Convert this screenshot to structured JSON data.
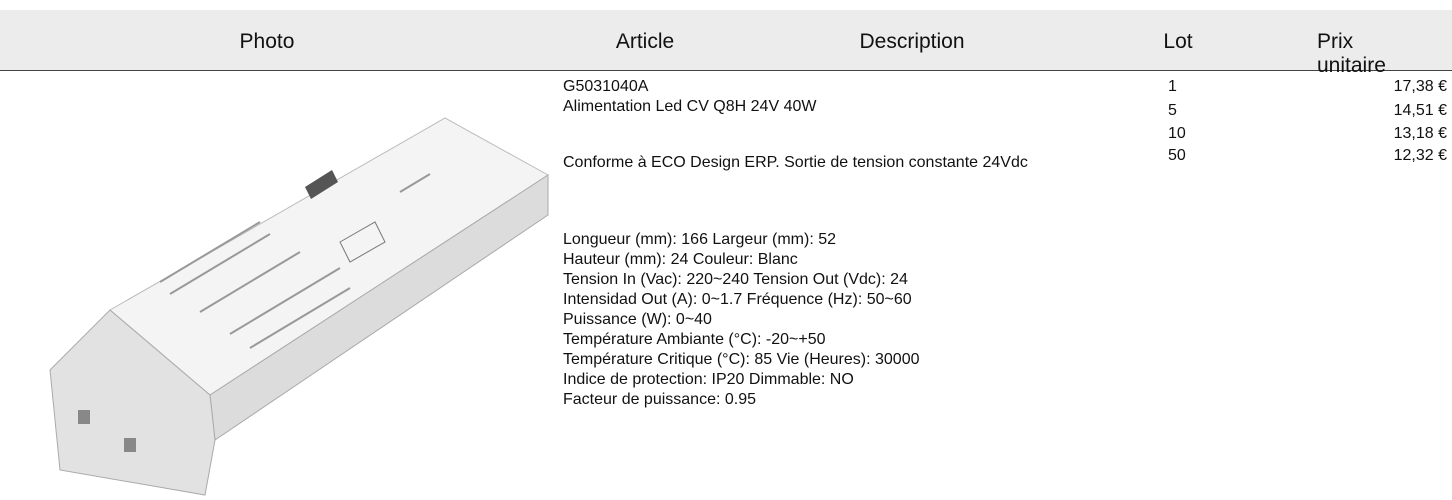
{
  "header": {
    "columns": [
      "Photo",
      "Article",
      "Description",
      "Lot",
      "Prix unitaire"
    ]
  },
  "product": {
    "code": "G5031040A",
    "name": "Alimentation Led CV Q8H 24V 40W",
    "summary": "Conforme à ECO Design ERP. Sortie de tension constante 24Vdc",
    "specs": [
      "Longueur (mm): 166 Largeur (mm): 52",
      "Hauteur (mm): 24 Couleur: Blanc",
      "Tension In (Vac): 220~240 Tension Out (Vdc): 24",
      "Intensidad Out (A): 0~1.7 Fréquence (Hz): 50~60",
      "Puissance (W): 0~40",
      "Température Ambiante (°C): -20~+50",
      "Température Critique (°C): 85 Vie (Heures): 30000",
      "Indice de protection: IP20 Dimmable: NO",
      "Facteur de puissance: 0.95"
    ]
  },
  "prices": [
    {
      "lot": 1,
      "price": "17,38 €"
    },
    {
      "lot": 5,
      "price": "14,51 €"
    },
    {
      "lot": 10,
      "price": "13,18 €"
    },
    {
      "lot": 50,
      "price": "12,32 €"
    }
  ]
}
